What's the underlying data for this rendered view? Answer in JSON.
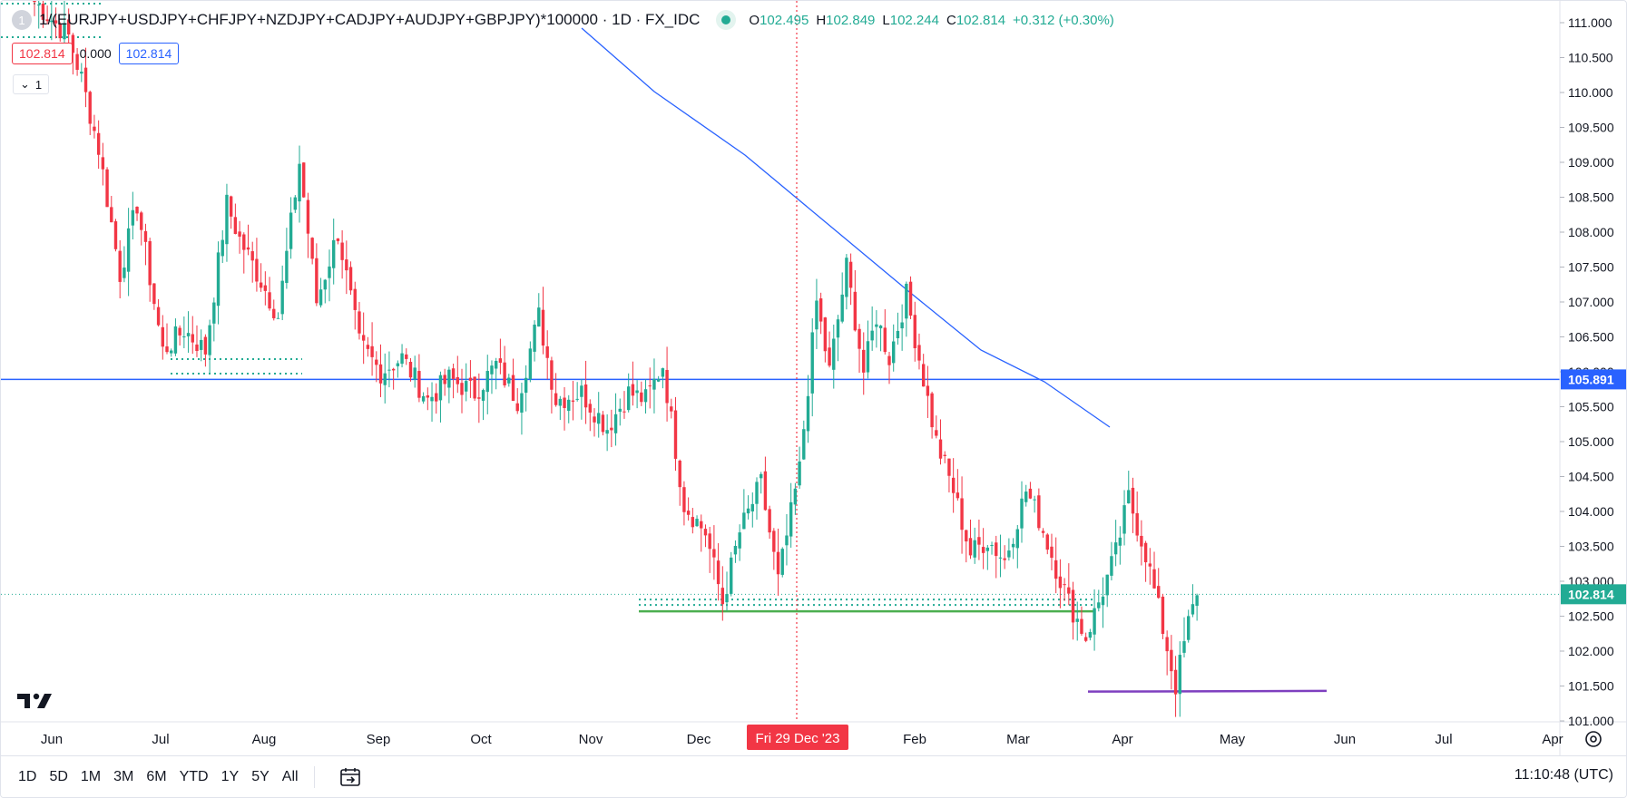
{
  "header": {
    "symbol_icon": "1",
    "symbol": "1/(EURJPY+USDJPY+CHFJPY+NZDJPY+CADJPY+AUDJPY+GBPJPY)*100000 · 1D · FX_IDC",
    "ohlc": {
      "o_label": "O",
      "o": "102.495",
      "h_label": "H",
      "h": "102.849",
      "l_label": "L",
      "l": "102.244",
      "c_label": "C",
      "c": "102.814",
      "change": "+0.312 (+0.30%)"
    }
  },
  "indicator": {
    "value_a": "102.814",
    "value_b": "0.000",
    "value_c": "102.814"
  },
  "collapse": {
    "icon": "chevron-down-icon",
    "count": "1"
  },
  "bottom_bar": {
    "ranges": [
      "1D",
      "5D",
      "1M",
      "3M",
      "6M",
      "YTD",
      "1Y",
      "5Y",
      "All"
    ],
    "time": "11:10:48 (UTC)"
  },
  "colors": {
    "up": "#22ab94",
    "down": "#f23645",
    "hline": "#2962ff",
    "ma": "#2962ff",
    "support": "#4caf50",
    "purple": "#7e3fbf",
    "crosshair": "#f23645"
  },
  "chart_data": {
    "type": "candlestick",
    "y_ticks": [
      "111.000",
      "110.500",
      "110.000",
      "109.500",
      "109.000",
      "108.500",
      "108.000",
      "107.500",
      "107.000",
      "106.500",
      "106.000",
      "105.500",
      "105.000",
      "104.500",
      "104.000",
      "103.500",
      "103.000",
      "102.500",
      "102.000",
      "101.500",
      "101.000"
    ],
    "x_ticks": [
      "Jun",
      "Jul",
      "Aug",
      "Sep",
      "Oct",
      "Nov",
      "Dec",
      "Fri 29 Dec '23",
      "Feb",
      "Mar",
      "Apr",
      "May",
      "Jun",
      "Jul",
      "Apr"
    ],
    "highlighted_x_label": "Fri 29 Dec '23",
    "price_labels": {
      "horizontal_line": "105.891",
      "last_price": "102.814",
      "hidden_tick": "106.000"
    },
    "horizontal_line_value": 105.891,
    "support_line_value": 102.57,
    "purple_line": [
      101.42,
      101.43
    ],
    "ylim": [
      100.92,
      111.25
    ],
    "candle_count": 225,
    "anchors": [
      [
        0,
        111.3
      ],
      [
        8,
        110.8
      ],
      [
        11,
        110.2
      ],
      [
        15,
        109.2
      ],
      [
        20,
        107.4
      ],
      [
        24,
        108.4
      ],
      [
        30,
        106.3
      ],
      [
        35,
        106.6
      ],
      [
        40,
        106.3
      ],
      [
        45,
        108.4
      ],
      [
        48,
        107.9
      ],
      [
        53,
        107.3
      ],
      [
        57,
        106.8
      ],
      [
        62,
        109.0
      ],
      [
        66,
        107.0
      ],
      [
        71,
        108.0
      ],
      [
        76,
        106.4
      ],
      [
        81,
        106.0
      ],
      [
        86,
        106.2
      ],
      [
        92,
        105.6
      ],
      [
        97,
        105.9
      ],
      [
        103,
        105.7
      ],
      [
        108,
        106.1
      ],
      [
        113,
        105.6
      ],
      [
        118,
        106.8
      ],
      [
        122,
        105.6
      ],
      [
        128,
        105.7
      ],
      [
        134,
        105.2
      ],
      [
        139,
        105.7
      ],
      [
        143,
        105.6
      ],
      [
        147,
        106.1
      ],
      [
        152,
        104.1
      ],
      [
        157,
        103.7
      ],
      [
        161,
        102.7
      ],
      [
        165,
        103.7
      ],
      [
        170,
        104.4
      ],
      [
        174,
        103.0
      ],
      [
        179,
        104.6
      ],
      [
        183,
        107.0
      ],
      [
        186,
        106.0
      ],
      [
        190,
        107.5
      ],
      [
        194,
        106.0
      ],
      [
        197,
        106.8
      ],
      [
        200,
        106.2
      ],
      [
        204,
        107.1
      ],
      [
        207,
        106.2
      ],
      [
        211,
        105.0
      ],
      [
        215,
        104.3
      ],
      [
        219,
        103.4
      ],
      [
        223,
        103.6
      ],
      [
        227,
        103.3
      ],
      [
        232,
        104.3
      ],
      [
        235,
        103.9
      ],
      [
        239,
        103.2
      ],
      [
        242,
        102.7
      ],
      [
        246,
        102.2
      ],
      [
        249,
        102.7
      ],
      [
        253,
        103.4
      ],
      [
        256,
        104.2
      ],
      [
        260,
        103.4
      ],
      [
        263,
        102.6
      ],
      [
        267,
        101.5
      ],
      [
        270,
        102.4
      ],
      [
        272,
        102.8
      ]
    ]
  }
}
